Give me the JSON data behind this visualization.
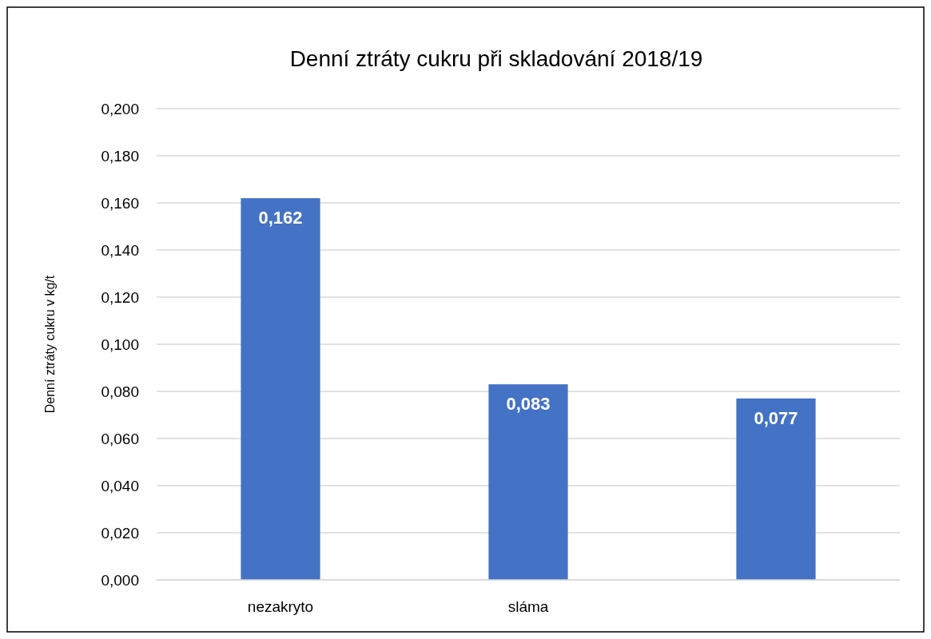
{
  "chart_data": {
    "type": "bar",
    "title": "Denní ztráty cukru při skladování  2018/19",
    "ylabel": "Denní ztráty cukru v kg/t",
    "categories": [
      "nezakryto",
      "sláma",
      null
    ],
    "values": [
      0.162,
      0.083,
      0.077
    ],
    "value_labels": [
      "0,162",
      "0,083",
      "0,077"
    ],
    "color": "#4472c4",
    "ylim": [
      0,
      0.2
    ],
    "yticks": [
      {
        "value": 0,
        "label": "0,000"
      },
      {
        "value": 0.02,
        "label": "0,020"
      },
      {
        "value": 0.04,
        "label": "0,040"
      },
      {
        "value": 0.06,
        "label": "0,060"
      },
      {
        "value": 0.08,
        "label": "0,080"
      },
      {
        "value": 0.1,
        "label": "0,100"
      },
      {
        "value": 0.12,
        "label": "0,120"
      },
      {
        "value": 0.14,
        "label": "0,140"
      },
      {
        "value": 0.16,
        "label": "0,160"
      },
      {
        "value": 0.18,
        "label": "0,180"
      },
      {
        "value": 0.2,
        "label": "0,200"
      }
    ],
    "grid": "y"
  }
}
